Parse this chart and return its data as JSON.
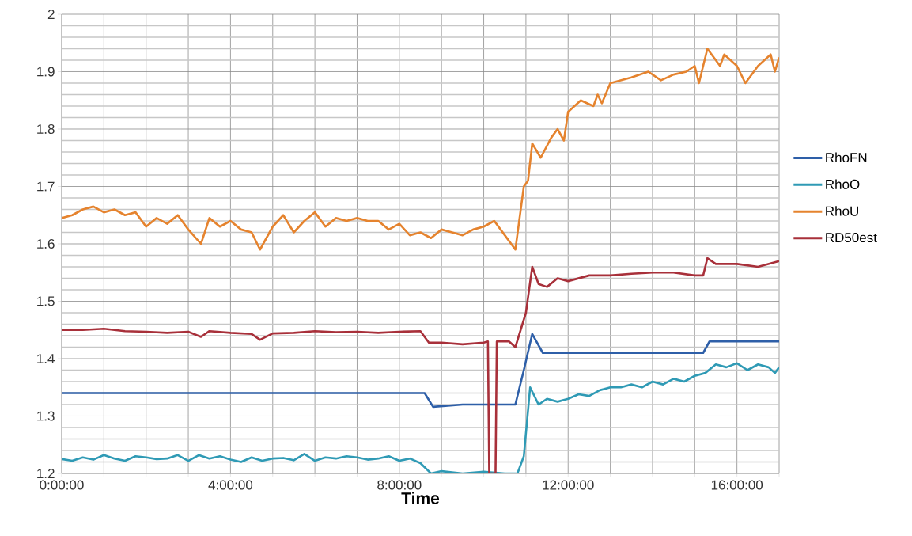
{
  "chart_data": {
    "type": "line",
    "xlabel": "Time",
    "legend": "right",
    "grid": true,
    "xlim": [
      0,
      17
    ],
    "ylim": [
      1.2,
      2
    ],
    "xticks": [
      {
        "value": 0,
        "label": "0:00:00"
      },
      {
        "value": 1,
        "label": null
      },
      {
        "value": 2,
        "label": null
      },
      {
        "value": 3,
        "label": null
      },
      {
        "value": 4,
        "label": "4:00:00"
      },
      {
        "value": 5,
        "label": null
      },
      {
        "value": 6,
        "label": null
      },
      {
        "value": 7,
        "label": null
      },
      {
        "value": 8,
        "label": "8:00:00"
      },
      {
        "value": 9,
        "label": null
      },
      {
        "value": 10,
        "label": null
      },
      {
        "value": 11,
        "label": null
      },
      {
        "value": 12,
        "label": "12:00:00"
      },
      {
        "value": 13,
        "label": null
      },
      {
        "value": 14,
        "label": null
      },
      {
        "value": 15,
        "label": null
      },
      {
        "value": 16,
        "label": "16:00:00"
      },
      {
        "value": 17,
        "label": null
      }
    ],
    "yticks": [
      1.2,
      1.3,
      1.4,
      1.5,
      1.6,
      1.7,
      1.8,
      1.9,
      2
    ],
    "series": [
      {
        "name": "RhoFN",
        "color": "#2e5fa8",
        "x": [
          0,
          1,
          2,
          3,
          4,
          5,
          6,
          7,
          8,
          8.6,
          8.8,
          9.5,
          10.75,
          10.95,
          11.15,
          11.4,
          12,
          13,
          14,
          15.2,
          15.35,
          16,
          17
        ],
        "values": [
          1.34,
          1.34,
          1.34,
          1.34,
          1.34,
          1.34,
          1.34,
          1.34,
          1.34,
          1.34,
          1.316,
          1.32,
          1.32,
          1.38,
          1.443,
          1.41,
          1.41,
          1.41,
          1.41,
          1.41,
          1.43,
          1.43,
          1.43
        ]
      },
      {
        "name": "RhoO",
        "color": "#2f9ab5",
        "x": [
          0,
          0.25,
          0.5,
          0.75,
          1,
          1.25,
          1.5,
          1.75,
          2,
          2.25,
          2.5,
          2.75,
          3,
          3.25,
          3.5,
          3.75,
          4,
          4.25,
          4.5,
          4.75,
          5,
          5.25,
          5.5,
          5.75,
          6,
          6.25,
          6.5,
          6.75,
          7,
          7.25,
          7.5,
          7.75,
          8,
          8.25,
          8.5,
          8.75,
          9,
          9.5,
          10,
          10.5,
          10.8,
          10.95,
          11.1,
          11.3,
          11.5,
          11.75,
          12,
          12.25,
          12.5,
          12.75,
          13,
          13.25,
          13.5,
          13.75,
          14,
          14.25,
          14.5,
          14.75,
          15,
          15.25,
          15.5,
          15.75,
          16,
          16.25,
          16.5,
          16.75,
          16.9,
          17
        ],
        "values": [
          1.225,
          1.222,
          1.228,
          1.224,
          1.232,
          1.226,
          1.222,
          1.23,
          1.228,
          1.225,
          1.226,
          1.232,
          1.222,
          1.232,
          1.226,
          1.23,
          1.224,
          1.22,
          1.228,
          1.222,
          1.226,
          1.227,
          1.223,
          1.234,
          1.222,
          1.228,
          1.226,
          1.23,
          1.228,
          1.224,
          1.226,
          1.23,
          1.222,
          1.226,
          1.218,
          1.2,
          1.204,
          1.2,
          1.203,
          1.2,
          1.2,
          1.23,
          1.35,
          1.32,
          1.33,
          1.325,
          1.33,
          1.338,
          1.335,
          1.345,
          1.35,
          1.35,
          1.355,
          1.35,
          1.36,
          1.355,
          1.365,
          1.36,
          1.37,
          1.375,
          1.39,
          1.385,
          1.392,
          1.38,
          1.39,
          1.385,
          1.375,
          1.385
        ]
      },
      {
        "name": "RhoU",
        "color": "#e5832e",
        "x": [
          0,
          0.25,
          0.5,
          0.75,
          1,
          1.25,
          1.5,
          1.75,
          2,
          2.25,
          2.5,
          2.75,
          3,
          3.3,
          3.5,
          3.75,
          4,
          4.25,
          4.5,
          4.7,
          5,
          5.25,
          5.5,
          5.75,
          6,
          6.25,
          6.5,
          6.75,
          7,
          7.25,
          7.5,
          7.75,
          8,
          8.25,
          8.5,
          8.75,
          9,
          9.25,
          9.5,
          9.75,
          10,
          10.25,
          10.5,
          10.75,
          10.95,
          11.05,
          11.15,
          11.35,
          11.6,
          11.75,
          11.9,
          12,
          12.3,
          12.6,
          12.7,
          12.8,
          13,
          13.5,
          13.9,
          14.2,
          14.5,
          14.8,
          15,
          15.1,
          15.3,
          15.6,
          15.7,
          16,
          16.2,
          16.5,
          16.8,
          16.9,
          17
        ],
        "values": [
          1.645,
          1.65,
          1.66,
          1.665,
          1.655,
          1.66,
          1.65,
          1.655,
          1.63,
          1.645,
          1.635,
          1.65,
          1.625,
          1.6,
          1.645,
          1.63,
          1.64,
          1.625,
          1.62,
          1.59,
          1.63,
          1.65,
          1.62,
          1.64,
          1.655,
          1.63,
          1.645,
          1.64,
          1.645,
          1.64,
          1.64,
          1.625,
          1.635,
          1.615,
          1.62,
          1.61,
          1.625,
          1.62,
          1.615,
          1.625,
          1.63,
          1.64,
          1.615,
          1.59,
          1.7,
          1.71,
          1.775,
          1.75,
          1.785,
          1.8,
          1.78,
          1.83,
          1.85,
          1.84,
          1.86,
          1.845,
          1.88,
          1.89,
          1.9,
          1.885,
          1.895,
          1.9,
          1.91,
          1.88,
          1.94,
          1.91,
          1.93,
          1.91,
          1.88,
          1.91,
          1.93,
          1.9,
          1.925
        ]
      },
      {
        "name": "RD50est",
        "color": "#a8303a",
        "x": [
          0,
          0.5,
          1,
          1.5,
          2,
          2.5,
          3,
          3.3,
          3.5,
          4,
          4.5,
          4.7,
          5,
          5.5,
          6,
          6.5,
          7,
          7.5,
          8,
          8.5,
          8.7,
          9,
          9.5,
          10,
          10.1,
          10.13,
          10.17,
          10.28,
          10.31,
          10.35,
          10.6,
          10.75,
          11,
          11.15,
          11.3,
          11.5,
          11.75,
          12,
          12.5,
          13,
          13.5,
          14,
          14.5,
          15,
          15.2,
          15.3,
          15.5,
          16,
          16.5,
          17
        ],
        "values": [
          1.45,
          1.45,
          1.452,
          1.448,
          1.447,
          1.445,
          1.447,
          1.438,
          1.448,
          1.445,
          1.443,
          1.433,
          1.444,
          1.445,
          1.448,
          1.446,
          1.447,
          1.445,
          1.447,
          1.448,
          1.428,
          1.428,
          1.425,
          1.428,
          1.43,
          1.2,
          1.2,
          1.2,
          1.43,
          1.43,
          1.43,
          1.42,
          1.48,
          1.56,
          1.53,
          1.525,
          1.54,
          1.535,
          1.545,
          1.545,
          1.548,
          1.55,
          1.55,
          1.545,
          1.545,
          1.575,
          1.565,
          1.565,
          1.56,
          1.57
        ]
      }
    ]
  }
}
